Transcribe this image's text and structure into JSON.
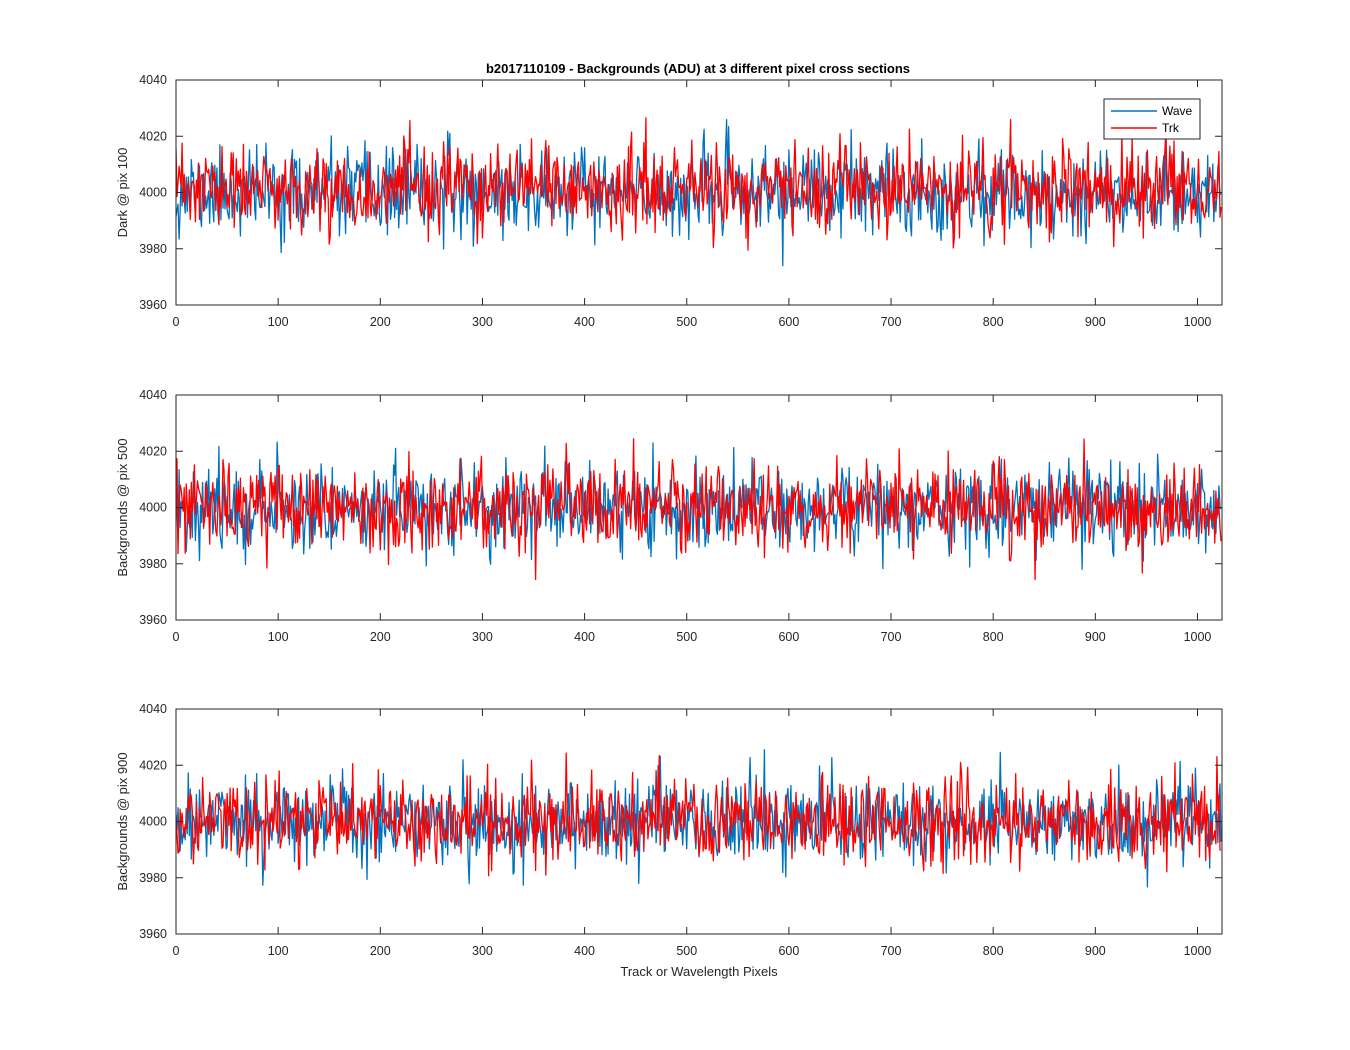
{
  "window": {
    "title": "b2017110109 - Backgrounds (ADU) at 3 different pixel cross sections"
  },
  "chart_data": [
    {
      "type": "line",
      "title": "b2017110109 - Backgrounds (ADU) at 3 different pixel cross sections",
      "xlabel": "",
      "ylabel": "Dark @ pix 100",
      "xlim": [
        0,
        1024
      ],
      "ylim": [
        3960,
        4040
      ],
      "xticks": [
        0,
        100,
        200,
        300,
        400,
        500,
        600,
        700,
        800,
        900,
        1000
      ],
      "yticks": [
        3960,
        3980,
        4000,
        4020,
        4040
      ],
      "grid": false,
      "legend": {
        "placement": "top-right",
        "entries": [
          "Wave",
          "Trk"
        ]
      },
      "series": [
        {
          "name": "Wave",
          "color": "#0072bd",
          "seed": 11,
          "mean": 4000,
          "noise_sd": 7.5,
          "n_points": 1024,
          "x_step": 1
        },
        {
          "name": "Trk",
          "color": "#ff0000",
          "seed": 23,
          "mean": 4001,
          "noise_sd": 7.5,
          "n_points": 1024,
          "x_step": 1
        }
      ]
    },
    {
      "type": "line",
      "title": "",
      "xlabel": "",
      "ylabel": "Backgrounds @ pix 500",
      "xlim": [
        0,
        1024
      ],
      "ylim": [
        3960,
        4040
      ],
      "xticks": [
        0,
        100,
        200,
        300,
        400,
        500,
        600,
        700,
        800,
        900,
        1000
      ],
      "yticks": [
        3960,
        3980,
        4000,
        4020,
        4040
      ],
      "grid": false,
      "series": [
        {
          "name": "Wave",
          "color": "#0072bd",
          "seed": 37,
          "mean": 4000,
          "noise_sd": 7.5,
          "n_points": 1024,
          "x_step": 1
        },
        {
          "name": "Trk",
          "color": "#ff0000",
          "seed": 53,
          "mean": 4000,
          "noise_sd": 7.5,
          "n_points": 1024,
          "x_step": 1
        }
      ]
    },
    {
      "type": "line",
      "title": "",
      "xlabel": "Track or Wavelength Pixels",
      "ylabel": "Backgrounds @ pix 900",
      "xlim": [
        0,
        1024
      ],
      "ylim": [
        3960,
        4040
      ],
      "xticks": [
        0,
        100,
        200,
        300,
        400,
        500,
        600,
        700,
        800,
        900,
        1000
      ],
      "yticks": [
        3960,
        3980,
        4000,
        4020,
        4040
      ],
      "grid": false,
      "series": [
        {
          "name": "Wave",
          "color": "#0072bd",
          "seed": 71,
          "mean": 4000,
          "noise_sd": 7.5,
          "n_points": 1024,
          "x_step": 1
        },
        {
          "name": "Trk",
          "color": "#ff0000",
          "seed": 97,
          "mean": 4000,
          "noise_sd": 7.5,
          "n_points": 1024,
          "x_step": 1
        }
      ]
    }
  ]
}
